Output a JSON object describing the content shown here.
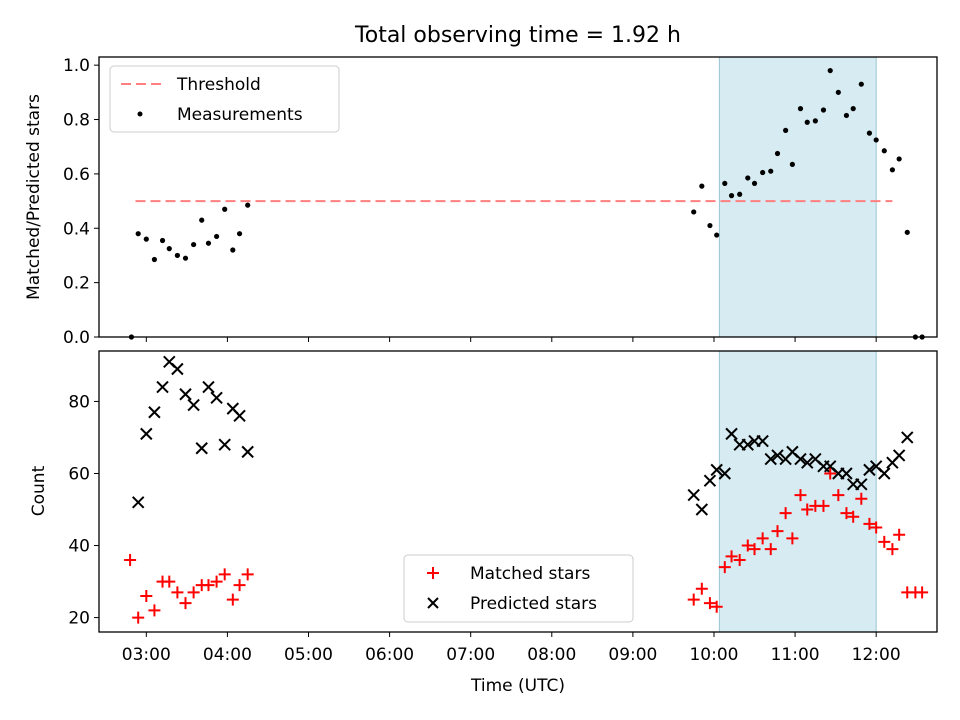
{
  "chart_data": {
    "title": "Total observing time = 1.92 h",
    "xlabel": "Time (UTC)",
    "x_range": [
      "02:25",
      "12:45"
    ],
    "x_ticks": [
      "03:00",
      "04:00",
      "05:00",
      "06:00",
      "07:00",
      "08:00",
      "09:00",
      "10:00",
      "11:00",
      "12:00"
    ],
    "shaded_span": {
      "start": "10:04",
      "end": "12:00",
      "color": "#add8e6"
    },
    "panels": [
      {
        "type": "scatter",
        "ylabel": "Matched/Predicted stars",
        "ylim": [
          0,
          1.03
        ],
        "y_ticks": [
          "0.0",
          "0.2",
          "0.4",
          "0.6",
          "0.8",
          "1.0"
        ],
        "legend_position": "top-left",
        "threshold": {
          "name": "Threshold",
          "value": 0.5,
          "x_start": "02:52",
          "x_end": "12:12",
          "color": "#ff7f7f"
        },
        "series": [
          {
            "name": "Measurements",
            "color": "#000000",
            "marker": "dot",
            "points": [
              [
                "02:49",
                0.0
              ],
              [
                "02:54",
                0.38
              ],
              [
                "03:00",
                0.36
              ],
              [
                "03:06",
                0.285
              ],
              [
                "03:12",
                0.355
              ],
              [
                "03:17",
                0.325
              ],
              [
                "03:23",
                0.3
              ],
              [
                "03:29",
                0.29
              ],
              [
                "03:35",
                0.34
              ],
              [
                "03:41",
                0.43
              ],
              [
                "03:46",
                0.345
              ],
              [
                "03:52",
                0.37
              ],
              [
                "03:58",
                0.47
              ],
              [
                "04:04",
                0.32
              ],
              [
                "04:09",
                0.38
              ],
              [
                "04:15",
                0.485
              ],
              [
                "09:45",
                0.46
              ],
              [
                "09:51",
                0.555
              ],
              [
                "09:57",
                0.41
              ],
              [
                "10:02",
                0.375
              ],
              [
                "10:08",
                0.565
              ],
              [
                "10:13",
                0.52
              ],
              [
                "10:19",
                0.525
              ],
              [
                "10:25",
                0.585
              ],
              [
                "10:30",
                0.565
              ],
              [
                "10:36",
                0.605
              ],
              [
                "10:42",
                0.61
              ],
              [
                "10:47",
                0.675
              ],
              [
                "10:53",
                0.76
              ],
              [
                "10:58",
                0.635
              ],
              [
                "11:04",
                0.84
              ],
              [
                "11:09",
                0.79
              ],
              [
                "11:15",
                0.795
              ],
              [
                "11:21",
                0.835
              ],
              [
                "11:26",
                0.98
              ],
              [
                "11:32",
                0.9
              ],
              [
                "11:38",
                0.815
              ],
              [
                "11:43",
                0.84
              ],
              [
                "11:49",
                0.93
              ],
              [
                "11:55",
                0.75
              ],
              [
                "12:00",
                0.725
              ],
              [
                "12:06",
                0.685
              ],
              [
                "12:12",
                0.615
              ],
              [
                "12:17",
                0.655
              ],
              [
                "12:23",
                0.385
              ],
              [
                "12:29",
                0.0
              ],
              [
                "12:34",
                0.0
              ]
            ]
          }
        ]
      },
      {
        "type": "scatter",
        "ylabel": "Count",
        "ylim": [
          16,
          94
        ],
        "y_ticks": [
          "20",
          "40",
          "60",
          "80"
        ],
        "legend_position": "lower center",
        "series": [
          {
            "name": "Matched stars",
            "color": "#ff0000",
            "marker": "plus",
            "points": [
              [
                "02:48",
                36
              ],
              [
                "02:54",
                20
              ],
              [
                "03:00",
                26
              ],
              [
                "03:06",
                22
              ],
              [
                "03:12",
                30
              ],
              [
                "03:17",
                30
              ],
              [
                "03:23",
                27
              ],
              [
                "03:29",
                24
              ],
              [
                "03:35",
                27
              ],
              [
                "03:41",
                29
              ],
              [
                "03:46",
                29
              ],
              [
                "03:52",
                30
              ],
              [
                "03:58",
                32
              ],
              [
                "04:04",
                25
              ],
              [
                "04:09",
                29
              ],
              [
                "04:15",
                32
              ],
              [
                "09:45",
                25
              ],
              [
                "09:51",
                28
              ],
              [
                "09:57",
                24
              ],
              [
                "10:02",
                23
              ],
              [
                "10:08",
                34
              ],
              [
                "10:13",
                37
              ],
              [
                "10:19",
                36
              ],
              [
                "10:25",
                40
              ],
              [
                "10:30",
                39
              ],
              [
                "10:36",
                42
              ],
              [
                "10:42",
                39
              ],
              [
                "10:47",
                44
              ],
              [
                "10:53",
                49
              ],
              [
                "10:58",
                42
              ],
              [
                "11:04",
                54
              ],
              [
                "11:09",
                50
              ],
              [
                "11:15",
                51
              ],
              [
                "11:21",
                51
              ],
              [
                "11:26",
                60
              ],
              [
                "11:32",
                54
              ],
              [
                "11:38",
                49
              ],
              [
                "11:43",
                48
              ],
              [
                "11:49",
                53
              ],
              [
                "11:55",
                46
              ],
              [
                "12:00",
                45
              ],
              [
                "12:06",
                41
              ],
              [
                "12:12",
                39
              ],
              [
                "12:17",
                43
              ],
              [
                "12:23",
                27
              ],
              [
                "12:29",
                27
              ],
              [
                "12:34",
                27
              ]
            ]
          },
          {
            "name": "Predicted stars",
            "color": "#000000",
            "marker": "x",
            "points": [
              [
                "02:54",
                52
              ],
              [
                "03:00",
                71
              ],
              [
                "03:06",
                77
              ],
              [
                "03:12",
                84
              ],
              [
                "03:17",
                91
              ],
              [
                "03:23",
                89
              ],
              [
                "03:29",
                82
              ],
              [
                "03:35",
                79
              ],
              [
                "03:41",
                67
              ],
              [
                "03:46",
                84
              ],
              [
                "03:52",
                81
              ],
              [
                "03:58",
                68
              ],
              [
                "04:04",
                78
              ],
              [
                "04:09",
                76
              ],
              [
                "04:15",
                66
              ],
              [
                "09:45",
                54
              ],
              [
                "09:51",
                50
              ],
              [
                "09:57",
                58
              ],
              [
                "10:02",
                61
              ],
              [
                "10:08",
                60
              ],
              [
                "10:13",
                71
              ],
              [
                "10:19",
                68
              ],
              [
                "10:25",
                68
              ],
              [
                "10:30",
                69
              ],
              [
                "10:36",
                69
              ],
              [
                "10:42",
                64
              ],
              [
                "10:47",
                65
              ],
              [
                "10:53",
                64
              ],
              [
                "10:58",
                66
              ],
              [
                "11:04",
                64
              ],
              [
                "11:09",
                63
              ],
              [
                "11:15",
                64
              ],
              [
                "11:21",
                62
              ],
              [
                "11:26",
                62
              ],
              [
                "11:32",
                60
              ],
              [
                "11:38",
                60
              ],
              [
                "11:43",
                57
              ],
              [
                "11:49",
                57
              ],
              [
                "11:55",
                61
              ],
              [
                "12:00",
                62
              ],
              [
                "12:06",
                60
              ],
              [
                "12:12",
                63
              ],
              [
                "12:17",
                65
              ],
              [
                "12:23",
                70
              ]
            ]
          }
        ]
      }
    ]
  }
}
